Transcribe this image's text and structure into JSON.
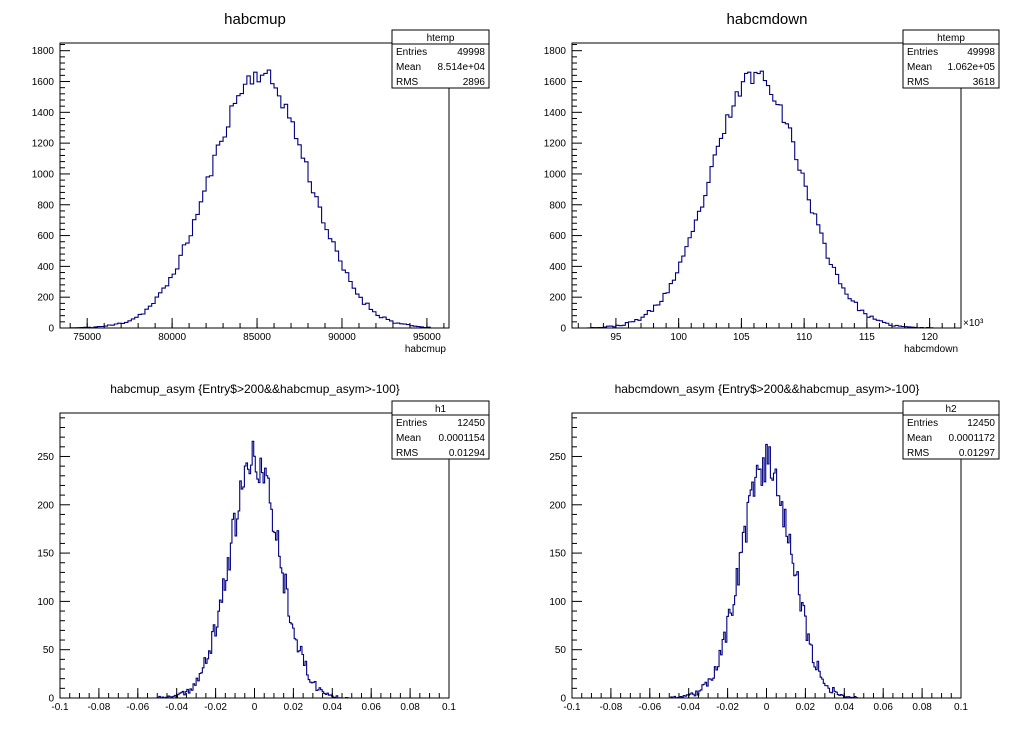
{
  "chart_data": [
    {
      "type": "histogram",
      "title": "habcmup",
      "xlabel": "habcmup",
      "ylabel": "",
      "xlim": [
        73400,
        96300
      ],
      "ylim": [
        0,
        1850
      ],
      "xticks": [
        75000,
        80000,
        85000,
        90000,
        95000
      ],
      "xtick_labels": [
        "75000",
        "80000",
        "85000",
        "90000",
        "95000"
      ],
      "yticks": [
        0,
        200,
        400,
        600,
        800,
        1000,
        1200,
        1400,
        1600,
        1800
      ],
      "x_multiplier_label": "",
      "stats": {
        "name": "htemp",
        "rows": [
          [
            "Entries",
            "49998"
          ],
          [
            "Mean",
            "8.514e+04"
          ],
          [
            "RMS",
            "2896"
          ]
        ]
      },
      "gauss": {
        "mean": 85140,
        "sigma": 2896,
        "peak": 1650,
        "bin_width": 200,
        "range": [
          74000,
          95200
        ],
        "seed": 11
      }
    },
    {
      "type": "histogram",
      "title": "habcmdown",
      "xlabel": "habcmdown",
      "ylabel": "",
      "xlim": [
        91500,
        122500
      ],
      "ylim": [
        0,
        1850
      ],
      "xticks": [
        95000,
        100000,
        105000,
        110000,
        115000,
        120000
      ],
      "xtick_labels": [
        "95",
        "100",
        "105",
        "110",
        "115",
        "120"
      ],
      "yticks": [
        0,
        200,
        400,
        600,
        800,
        1000,
        1200,
        1400,
        1600,
        1800
      ],
      "x_multiplier_label": "×10³",
      "stats": {
        "name": "htemp",
        "rows": [
          [
            "Entries",
            "49998"
          ],
          [
            "Mean",
            "1.062e+05"
          ],
          [
            "RMS",
            "3618"
          ]
        ]
      },
      "gauss": {
        "mean": 106200,
        "sigma": 3618,
        "peak": 1650,
        "bin_width": 250,
        "range": [
          92500,
          120500
        ],
        "seed": 23
      }
    },
    {
      "type": "histogram",
      "title": "habcmup_asym {Entry$>200&&habcmup_asym>-100}",
      "xlabel": "",
      "ylabel": "",
      "xlim": [
        -0.1,
        0.1
      ],
      "ylim": [
        0,
        295
      ],
      "xticks": [
        -0.1,
        -0.08,
        -0.06,
        -0.04,
        -0.02,
        0,
        0.02,
        0.04,
        0.06,
        0.08,
        0.1
      ],
      "xtick_labels": [
        "-0.1",
        "-0.08",
        "-0.06",
        "-0.04",
        "-0.02",
        "0",
        "0.02",
        "0.04",
        "0.06",
        "0.08",
        "0.1"
      ],
      "yticks": [
        0,
        50,
        100,
        150,
        200,
        250
      ],
      "x_multiplier_label": "",
      "stats": {
        "name": "h1",
        "rows": [
          [
            "Entries",
            "12450"
          ],
          [
            "Mean",
            "0.0001154"
          ],
          [
            "RMS",
            "0.01294"
          ]
        ]
      },
      "gauss": {
        "mean": 0.0001154,
        "sigma": 0.01294,
        "peak": 245,
        "bin_width": 0.0008,
        "range": [
          -0.05,
          0.048
        ],
        "seed": 37
      }
    },
    {
      "type": "histogram",
      "title": "habcmdown_asym {Entry$>200&&habcmup_asym>-100}",
      "xlabel": "",
      "ylabel": "",
      "xlim": [
        -0.1,
        0.1
      ],
      "ylim": [
        0,
        295
      ],
      "xticks": [
        -0.1,
        -0.08,
        -0.06,
        -0.04,
        -0.02,
        0,
        0.02,
        0.04,
        0.06,
        0.08,
        0.1
      ],
      "xtick_labels": [
        "-0.1",
        "-0.08",
        "-0.06",
        "-0.04",
        "-0.02",
        "0",
        "0.02",
        "0.04",
        "0.06",
        "0.08",
        "0.1"
      ],
      "yticks": [
        0,
        50,
        100,
        150,
        200,
        250
      ],
      "x_multiplier_label": "",
      "stats": {
        "name": "h2",
        "rows": [
          [
            "Entries",
            "12450"
          ],
          [
            "Mean",
            "0.0001172"
          ],
          [
            "RMS",
            "0.01297"
          ]
        ]
      },
      "gauss": {
        "mean": 0.0001172,
        "sigma": 0.01297,
        "peak": 245,
        "bin_width": 0.0008,
        "range": [
          -0.05,
          0.048
        ],
        "seed": 53
      }
    }
  ],
  "colors": {
    "line": "#000080",
    "axis": "#000000"
  }
}
